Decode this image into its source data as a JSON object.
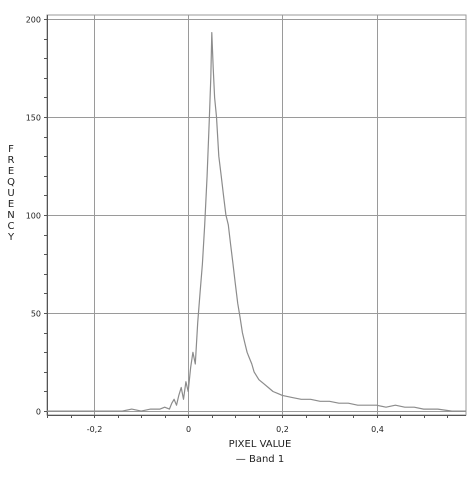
{
  "chart_data": {
    "type": "line",
    "title": "",
    "xlabel": "PIXEL VALUE",
    "ylabel": "FREQUENCY",
    "xlim": [
      -0.3,
      0.59
    ],
    "ylim": [
      -2,
      202
    ],
    "x_ticks": [
      -0.2,
      0,
      0.2,
      0.4
    ],
    "x_tick_labels": [
      "-0,2",
      "0",
      "0,2",
      "0,4"
    ],
    "y_ticks": [
      0,
      50,
      100,
      150,
      200
    ],
    "y_tick_labels": [
      "0",
      "50",
      "100",
      "150",
      "200"
    ],
    "grid": true,
    "legend": "bottom-center",
    "colors": {
      "series": "#8c8c8c",
      "grid": "#9a9a9a",
      "axis": "#555555"
    },
    "series": [
      {
        "name": "Band 1",
        "legend_label": "— Band 1",
        "points": [
          [
            -0.3,
            0
          ],
          [
            -0.14,
            0
          ],
          [
            -0.12,
            1
          ],
          [
            -0.1,
            0
          ],
          [
            -0.08,
            1
          ],
          [
            -0.06,
            1
          ],
          [
            -0.05,
            2
          ],
          [
            -0.04,
            1
          ],
          [
            -0.035,
            4
          ],
          [
            -0.03,
            6
          ],
          [
            -0.025,
            3
          ],
          [
            -0.02,
            8
          ],
          [
            -0.015,
            12
          ],
          [
            -0.01,
            6
          ],
          [
            -0.005,
            15
          ],
          [
            0.0,
            10
          ],
          [
            0.005,
            22
          ],
          [
            0.01,
            30
          ],
          [
            0.015,
            24
          ],
          [
            0.02,
            45
          ],
          [
            0.025,
            60
          ],
          [
            0.03,
            75
          ],
          [
            0.035,
            95
          ],
          [
            0.04,
            120
          ],
          [
            0.045,
            150
          ],
          [
            0.048,
            170
          ],
          [
            0.05,
            193
          ],
          [
            0.053,
            175
          ],
          [
            0.056,
            160
          ],
          [
            0.06,
            150
          ],
          [
            0.065,
            130
          ],
          [
            0.07,
            120
          ],
          [
            0.075,
            110
          ],
          [
            0.08,
            100
          ],
          [
            0.085,
            95
          ],
          [
            0.09,
            85
          ],
          [
            0.095,
            75
          ],
          [
            0.1,
            65
          ],
          [
            0.105,
            55
          ],
          [
            0.11,
            48
          ],
          [
            0.115,
            40
          ],
          [
            0.12,
            35
          ],
          [
            0.125,
            30
          ],
          [
            0.13,
            27
          ],
          [
            0.135,
            24
          ],
          [
            0.14,
            20
          ],
          [
            0.145,
            18
          ],
          [
            0.15,
            16
          ],
          [
            0.16,
            14
          ],
          [
            0.17,
            12
          ],
          [
            0.18,
            10
          ],
          [
            0.19,
            9
          ],
          [
            0.2,
            8
          ],
          [
            0.22,
            7
          ],
          [
            0.24,
            6
          ],
          [
            0.26,
            6
          ],
          [
            0.28,
            5
          ],
          [
            0.3,
            5
          ],
          [
            0.32,
            4
          ],
          [
            0.34,
            4
          ],
          [
            0.36,
            3
          ],
          [
            0.38,
            3
          ],
          [
            0.4,
            3
          ],
          [
            0.42,
            2
          ],
          [
            0.44,
            3
          ],
          [
            0.46,
            2
          ],
          [
            0.48,
            2
          ],
          [
            0.5,
            1
          ],
          [
            0.53,
            1
          ],
          [
            0.56,
            0
          ],
          [
            0.59,
            0
          ]
        ]
      }
    ]
  }
}
